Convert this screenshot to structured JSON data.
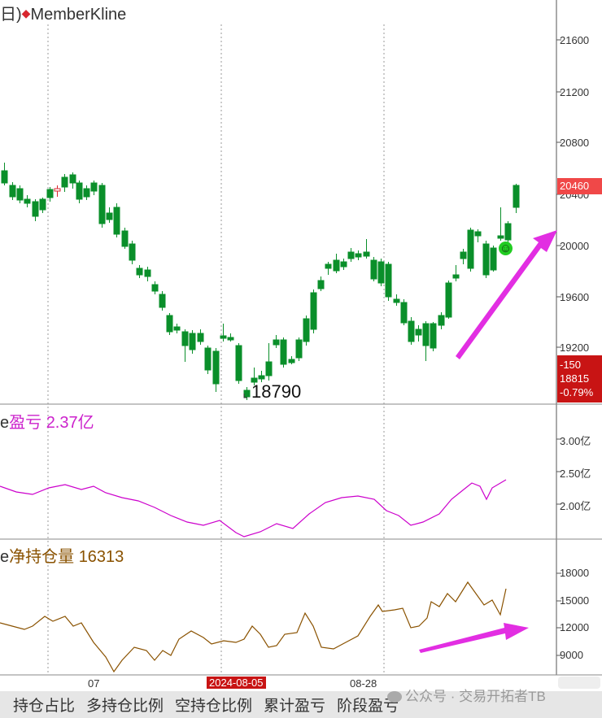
{
  "main_panel": {
    "title_prefix": "日)",
    "title_diamond": "◆",
    "title": "MemberKline",
    "y_ticks": [
      "21600",
      "21200",
      "20800",
      "20400",
      "20000",
      "19600",
      "19200"
    ],
    "price_tag": "20460",
    "change_box": [
      "-150",
      "18815",
      "-0.79%"
    ],
    "low_label": "18790",
    "smiley": "☺"
  },
  "pnl_panel": {
    "label_prefix": "e",
    "label_name": "盈亏",
    "label_value": "2.37亿",
    "y_ticks": [
      "3.00亿",
      "2.50亿",
      "2.00亿"
    ]
  },
  "net_panel": {
    "label_prefix": "e",
    "label_name": "净持仓量",
    "label_value": "16313",
    "y_ticks": [
      "18000",
      "15000",
      "12000",
      "9000"
    ]
  },
  "x_axis": {
    "labels": [
      "07",
      "2024-08-05",
      "08-28"
    ]
  },
  "tabs": [
    "持仓占比",
    "多持仓比例",
    "空持仓比例",
    "累计盈亏",
    "阶段盈亏"
  ],
  "watermark": "公众号 · 交易开拓者TB",
  "colors": {
    "up": "#d8262e",
    "down": "#0a8f2a",
    "pnl_line": "#cc00cc",
    "net_line": "#8a5200",
    "arrow": "#e22ee2",
    "price_tag_bg": "#f04848",
    "change_bg": "#c81414"
  }
}
